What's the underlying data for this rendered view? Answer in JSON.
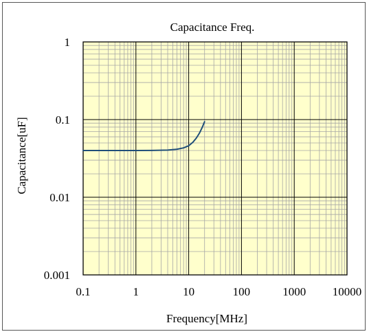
{
  "chart_data": {
    "type": "line",
    "title": "Capacitance Freq.",
    "xlabel": "Frequency[MHz]",
    "ylabel": "Capacitance[uF]",
    "x_scale": "log",
    "y_scale": "log",
    "xlim": [
      0.1,
      10000
    ],
    "ylim": [
      0.001,
      1
    ],
    "x_ticks": [
      "0.1",
      "1",
      "10",
      "100",
      "1000",
      "10000"
    ],
    "y_ticks": [
      "1",
      "0.1",
      "0.01",
      "0.001"
    ],
    "grid": true,
    "legend": "none",
    "plot_background": "#ffffcc",
    "line_color": "#1f4e79",
    "series": [
      {
        "x": [
          0.1,
          0.3,
          1,
          2,
          4,
          6,
          8,
          10,
          12,
          14,
          16,
          18,
          20
        ],
        "y": [
          0.04,
          0.04,
          0.04,
          0.0401,
          0.0405,
          0.0415,
          0.0432,
          0.046,
          0.051,
          0.058,
          0.067,
          0.079,
          0.094
        ]
      }
    ]
  }
}
